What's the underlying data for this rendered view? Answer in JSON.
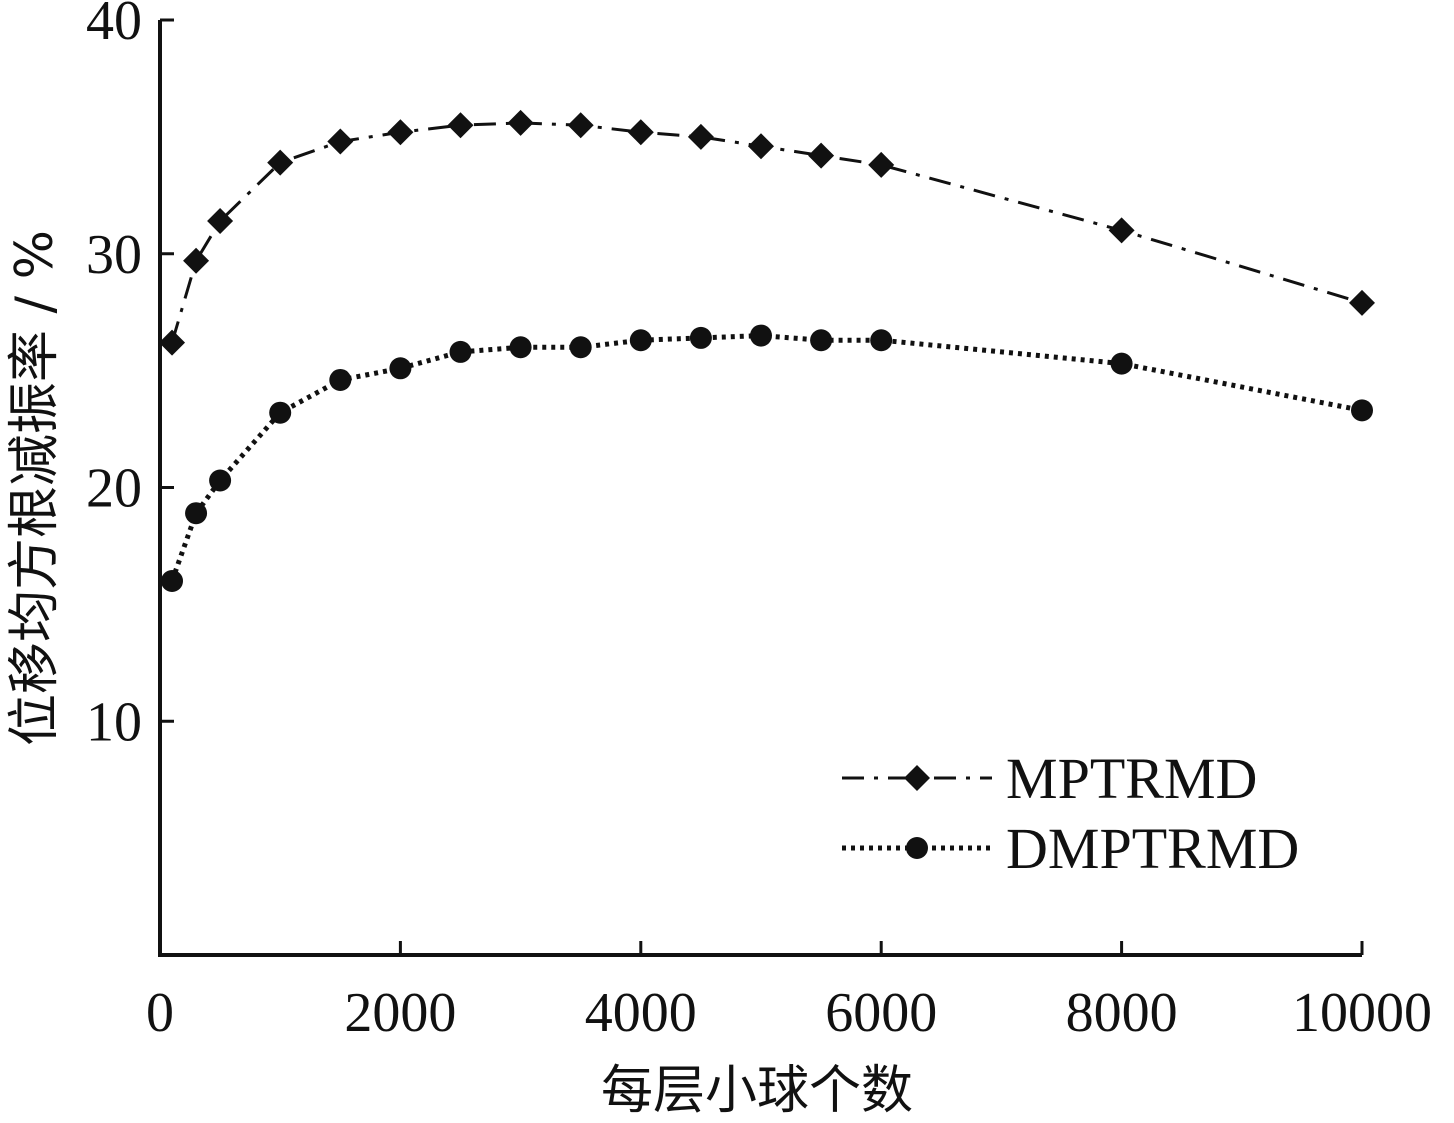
{
  "chart_data": {
    "type": "line",
    "title": "",
    "xlabel": "每层小球个数",
    "ylabel": "位移均方根减振率 / %",
    "xlim": [
      0,
      10000
    ],
    "ylim": [
      0,
      40
    ],
    "xticks": [
      0,
      2000,
      4000,
      6000,
      8000,
      10000
    ],
    "yticks": [
      10,
      20,
      30,
      40
    ],
    "x_tick_labels": [
      "0",
      "2000",
      "4000",
      "6000",
      "8000",
      "10000"
    ],
    "y_tick_labels": [
      "10",
      "20",
      "30",
      "40"
    ],
    "legend_position": "bottom-right",
    "grid": false,
    "x": [
      100,
      300,
      500,
      1000,
      1500,
      2000,
      2500,
      3000,
      3500,
      4000,
      4500,
      5000,
      5500,
      6000,
      8000,
      10000
    ],
    "series": [
      {
        "name": "MPTRMD",
        "marker": "diamond",
        "line_style": "dash-dot",
        "color": "#111111",
        "values": [
          26.2,
          29.7,
          31.4,
          33.9,
          34.8,
          35.2,
          35.5,
          35.6,
          35.5,
          35.2,
          35.0,
          34.6,
          34.2,
          33.8,
          31.0,
          27.9
        ]
      },
      {
        "name": "DMPTRMD",
        "marker": "circle",
        "line_style": "dotted",
        "color": "#111111",
        "values": [
          16.0,
          18.9,
          20.3,
          23.2,
          24.6,
          25.1,
          25.8,
          26.0,
          26.0,
          26.3,
          26.4,
          26.5,
          26.3,
          26.3,
          25.3,
          23.3
        ]
      }
    ]
  }
}
